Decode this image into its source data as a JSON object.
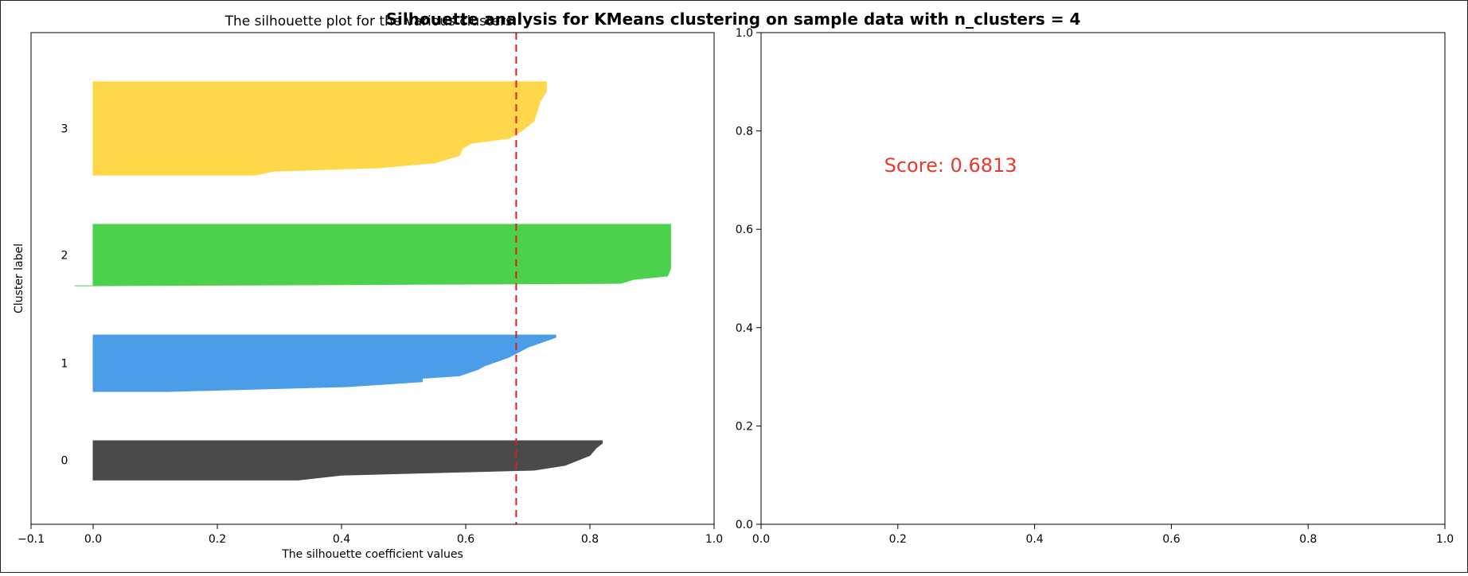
{
  "suptitle": "Silhouette analysis for KMeans clustering on sample data with n_clusters = 4",
  "chart_data": [
    {
      "type": "area",
      "title": "The silhouette plot for the various clusters.",
      "xlabel": "The silhouette coefficient values",
      "ylabel": "Cluster label",
      "xlim": [
        -0.1,
        1.0
      ],
      "ylim": [
        0,
        100
      ],
      "xticks": [
        "−0.1",
        "0.0",
        "0.2",
        "0.4",
        "0.6",
        "0.8",
        "1.0"
      ],
      "xtick_values": [
        -0.1,
        0.0,
        0.2,
        0.4,
        0.6,
        0.8,
        1.0
      ],
      "grid": false,
      "average_score": 0.6813,
      "average_line_color": "#e41a1c",
      "clusters": [
        {
          "label": "0",
          "color": "#4a4a4a",
          "y_range": [
            9,
            17
          ],
          "profile": [
            [
              9,
              0.33
            ],
            [
              10,
              0.4
            ],
            [
              11,
              0.71
            ],
            [
              12,
              0.76
            ],
            [
              12.5,
              0.77
            ],
            [
              14,
              0.8
            ],
            [
              15.5,
              0.81
            ],
            [
              16.5,
              0.82
            ],
            [
              17,
              0.82
            ]
          ]
        },
        {
          "label": "1",
          "color": "#4a9de6",
          "y_range": [
            27,
            38.5
          ],
          "profile": [
            [
              27,
              0.12
            ],
            [
              28,
              0.41
            ],
            [
              29,
              0.53
            ],
            [
              29.7,
              0.53
            ],
            [
              30.2,
              0.59
            ],
            [
              31.5,
              0.62
            ],
            [
              32.2,
              0.63
            ],
            [
              34,
              0.67
            ],
            [
              36,
              0.7
            ],
            [
              38,
              0.745
            ],
            [
              38.5,
              0.745
            ]
          ]
        },
        {
          "label": "2",
          "color": "#4cd14c",
          "y_range": [
            48.5,
            61
          ],
          "profile": [
            [
              48.5,
              -0.03
            ],
            [
              49.0,
              0.85
            ],
            [
              49.8,
              0.87
            ],
            [
              50.5,
              0.925
            ],
            [
              52,
              0.93
            ],
            [
              55,
              0.93
            ],
            [
              58,
              0.93
            ],
            [
              61,
              0.93
            ]
          ]
        },
        {
          "label": "3",
          "color": "#fed84a",
          "y_range": [
            71,
            90
          ],
          "profile": [
            [
              71,
              0.26
            ],
            [
              71.8,
              0.29
            ],
            [
              72.5,
              0.46
            ],
            [
              73.5,
              0.55
            ],
            [
              75,
              0.59
            ],
            [
              76.5,
              0.595
            ],
            [
              77.5,
              0.61
            ],
            [
              78.5,
              0.67
            ],
            [
              80,
              0.69
            ],
            [
              82,
              0.71
            ],
            [
              84,
              0.715
            ],
            [
              86,
              0.72
            ],
            [
              88,
              0.73
            ],
            [
              90,
              0.73
            ]
          ]
        }
      ]
    },
    {
      "type": "scatter",
      "title": "",
      "xlabel": "",
      "ylabel": "",
      "xlim": [
        0.0,
        1.0
      ],
      "ylim": [
        0.0,
        1.0
      ],
      "xticks": [
        "0.0",
        "0.2",
        "0.4",
        "0.6",
        "0.8",
        "1.0"
      ],
      "yticks": [
        "0.0",
        "0.2",
        "0.4",
        "0.6",
        "0.8",
        "1.0"
      ],
      "tick_values": [
        0.0,
        0.2,
        0.4,
        0.6,
        0.8,
        1.0
      ],
      "annotation": "Score: 0.6813",
      "annotation_color": "#e8392c",
      "annotation_pos": [
        0.18,
        0.73
      ],
      "points": []
    }
  ]
}
